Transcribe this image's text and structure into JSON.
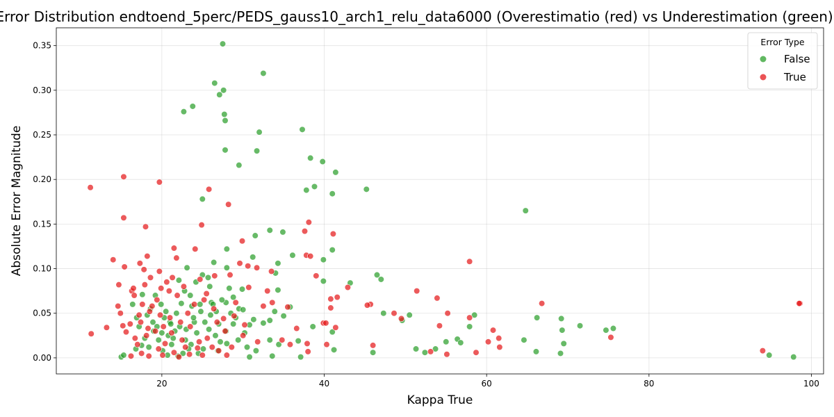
{
  "chart_data": {
    "type": "scatter",
    "title": "Error Distribution endtoend_5perc/PEDS_gauss10_arch1_relu_data6000 (Overestimatio (red) vs Underestimation (green))",
    "xlabel": "Kappa True",
    "ylabel": "Absolute Error Magnitude",
    "xlim": [
      7,
      101.5
    ],
    "ylim": [
      -0.018,
      0.37
    ],
    "xticks": [
      "20",
      "40",
      "60",
      "80",
      "100"
    ],
    "yticks": [
      "0.00",
      "0.05",
      "0.10",
      "0.15",
      "0.20",
      "0.25",
      "0.30",
      "0.35"
    ],
    "grid": true,
    "legend": {
      "title": "Error Type",
      "position": "top-right"
    },
    "series": [
      {
        "name": "False",
        "color": "#2ca02c",
        "points": [
          [
            27.5,
            0.352
          ],
          [
            32.5,
            0.319
          ],
          [
            26.5,
            0.308
          ],
          [
            27.6,
            0.3
          ],
          [
            27.1,
            0.295
          ],
          [
            23.8,
            0.282
          ],
          [
            22.7,
            0.276
          ],
          [
            27.7,
            0.273
          ],
          [
            27.8,
            0.266
          ],
          [
            37.3,
            0.256
          ],
          [
            32.0,
            0.253
          ],
          [
            27.8,
            0.233
          ],
          [
            31.7,
            0.232
          ],
          [
            38.3,
            0.224
          ],
          [
            39.8,
            0.22
          ],
          [
            29.5,
            0.216
          ],
          [
            41.4,
            0.208
          ],
          [
            38.8,
            0.192
          ],
          [
            45.2,
            0.189
          ],
          [
            37.8,
            0.188
          ],
          [
            41.0,
            0.184
          ],
          [
            25.0,
            0.178
          ],
          [
            64.8,
            0.165
          ],
          [
            33.3,
            0.143
          ],
          [
            34.9,
            0.141
          ],
          [
            31.5,
            0.137
          ],
          [
            28.0,
            0.122
          ],
          [
            41.0,
            0.121
          ],
          [
            36.1,
            0.115
          ],
          [
            31.2,
            0.113
          ],
          [
            39.9,
            0.11
          ],
          [
            26.4,
            0.107
          ],
          [
            34.3,
            0.106
          ],
          [
            28.0,
            0.101
          ],
          [
            23.1,
            0.101
          ],
          [
            34.0,
            0.095
          ],
          [
            46.5,
            0.093
          ],
          [
            25.0,
            0.093
          ],
          [
            25.7,
            0.09
          ],
          [
            47.0,
            0.088
          ],
          [
            39.9,
            0.086
          ],
          [
            43.2,
            0.084
          ],
          [
            22.1,
            0.087
          ],
          [
            28.3,
            0.078
          ],
          [
            29.9,
            0.077
          ],
          [
            34.3,
            0.076
          ],
          [
            17.6,
            0.071
          ],
          [
            19.2,
            0.07
          ],
          [
            23.5,
            0.07
          ],
          [
            28.8,
            0.068
          ],
          [
            27.9,
            0.062
          ],
          [
            26.1,
            0.062
          ],
          [
            22.4,
            0.061
          ],
          [
            24.7,
            0.06
          ],
          [
            26.3,
            0.06
          ],
          [
            35.8,
            0.057
          ],
          [
            29.5,
            0.055
          ],
          [
            30.0,
            0.054
          ],
          [
            20.5,
            0.052
          ],
          [
            26.7,
            0.052
          ],
          [
            33.9,
            0.052
          ],
          [
            47.3,
            0.05
          ],
          [
            58.5,
            0.048
          ],
          [
            50.5,
            0.048
          ],
          [
            66.2,
            0.045
          ],
          [
            69.2,
            0.044
          ],
          [
            35.0,
            0.047
          ],
          [
            29.1,
            0.045
          ],
          [
            31.3,
            0.043
          ],
          [
            33.3,
            0.042
          ],
          [
            49.6,
            0.042
          ],
          [
            18.9,
            0.04
          ],
          [
            21.0,
            0.04
          ],
          [
            24.0,
            0.04
          ],
          [
            27.0,
            0.038
          ],
          [
            28.8,
            0.038
          ],
          [
            30.8,
            0.037
          ],
          [
            32.5,
            0.039
          ],
          [
            71.5,
            0.036
          ],
          [
            38.6,
            0.035
          ],
          [
            57.9,
            0.035
          ],
          [
            75.6,
            0.033
          ],
          [
            74.7,
            0.031
          ],
          [
            69.3,
            0.031
          ],
          [
            41.0,
            0.029
          ],
          [
            30.2,
            0.028
          ],
          [
            56.4,
            0.021
          ],
          [
            36.8,
            0.019
          ],
          [
            55.0,
            0.018
          ],
          [
            69.5,
            0.016
          ],
          [
            56.8,
            0.017
          ],
          [
            64.6,
            0.02
          ],
          [
            33.3,
            0.02
          ],
          [
            28.0,
            0.016
          ],
          [
            34.4,
            0.015
          ],
          [
            53.7,
            0.01
          ],
          [
            51.3,
            0.01
          ],
          [
            41.2,
            0.009
          ],
          [
            31.6,
            0.008
          ],
          [
            46.0,
            0.006
          ],
          [
            52.4,
            0.006
          ],
          [
            66.1,
            0.007
          ],
          [
            69.1,
            0.005
          ],
          [
            94.8,
            0.003
          ],
          [
            97.8,
            0.001
          ],
          [
            37.1,
            0.001
          ],
          [
            33.6,
            0.002
          ],
          [
            30.8,
            0.001
          ],
          [
            15.0,
            0.001
          ],
          [
            15.3,
            0.003
          ],
          [
            16.8,
            0.01
          ],
          [
            17.5,
            0.014
          ],
          [
            18.4,
            0.012
          ],
          [
            19.6,
            0.02
          ],
          [
            20.8,
            0.025
          ],
          [
            21.6,
            0.03
          ],
          [
            22.2,
            0.035
          ],
          [
            22.9,
            0.02
          ],
          [
            23.6,
            0.015
          ],
          [
            24.3,
            0.028
          ],
          [
            25.1,
            0.01
          ],
          [
            25.8,
            0.032
          ],
          [
            26.6,
            0.025
          ],
          [
            27.2,
            0.018
          ],
          [
            27.9,
            0.03
          ],
          [
            19.0,
            0.03
          ],
          [
            20.1,
            0.008
          ],
          [
            21.2,
            0.015
          ],
          [
            22.6,
            0.005
          ],
          [
            23.9,
            0.045
          ],
          [
            24.5,
            0.005
          ],
          [
            26.0,
            0.048
          ],
          [
            21.8,
            0.05
          ],
          [
            20.3,
            0.045
          ],
          [
            18.6,
            0.055
          ],
          [
            16.9,
            0.045
          ],
          [
            17.9,
            0.022
          ],
          [
            19.4,
            0.035
          ],
          [
            20.7,
            0.003
          ],
          [
            22.0,
            0.002
          ],
          [
            23.3,
            0.01
          ],
          [
            24.8,
            0.052
          ],
          [
            26.9,
            0.008
          ],
          [
            29.4,
            0.02
          ],
          [
            30.5,
            0.012
          ],
          [
            28.5,
            0.05
          ],
          [
            27.4,
            0.065
          ],
          [
            25.3,
            0.04
          ],
          [
            23.0,
            0.032
          ],
          [
            21.4,
            0.022
          ],
          [
            18.2,
            0.048
          ],
          [
            16.4,
            0.06
          ],
          [
            17.2,
            0.035
          ],
          [
            19.9,
            0.06
          ],
          [
            22.8,
            0.075
          ],
          [
            24.2,
            0.085
          ],
          [
            25.9,
            0.08
          ],
          [
            21.1,
            0.038
          ],
          [
            20.0,
            0.028
          ],
          [
            23.7,
            0.058
          ]
        ]
      },
      {
        "name": "True",
        "color": "#e41a1c",
        "points": [
          [
            11.2,
            0.191
          ],
          [
            15.3,
            0.203
          ],
          [
            19.7,
            0.197
          ],
          [
            25.8,
            0.189
          ],
          [
            28.2,
            0.172
          ],
          [
            15.3,
            0.157
          ],
          [
            24.9,
            0.149
          ],
          [
            38.1,
            0.152
          ],
          [
            18.0,
            0.147
          ],
          [
            37.6,
            0.142
          ],
          [
            41.1,
            0.139
          ],
          [
            29.9,
            0.131
          ],
          [
            21.5,
            0.123
          ],
          [
            24.1,
            0.122
          ],
          [
            21.8,
            0.112
          ],
          [
            37.8,
            0.115
          ],
          [
            38.3,
            0.114
          ],
          [
            18.2,
            0.114
          ],
          [
            14.0,
            0.11
          ],
          [
            57.9,
            0.108
          ],
          [
            29.6,
            0.106
          ],
          [
            17.3,
            0.106
          ],
          [
            30.6,
            0.103
          ],
          [
            15.4,
            0.102
          ],
          [
            31.7,
            0.101
          ],
          [
            17.8,
            0.099
          ],
          [
            19.7,
            0.097
          ],
          [
            33.5,
            0.097
          ],
          [
            39.0,
            0.092
          ],
          [
            21.3,
            0.09
          ],
          [
            28.4,
            0.093
          ],
          [
            18.6,
            0.09
          ],
          [
            42.9,
            0.079
          ],
          [
            30.7,
            0.079
          ],
          [
            51.4,
            0.075
          ],
          [
            33.0,
            0.075
          ],
          [
            16.3,
            0.075
          ],
          [
            14.7,
            0.082
          ],
          [
            16.5,
            0.078
          ],
          [
            17.9,
            0.082
          ],
          [
            20.9,
            0.075
          ],
          [
            25.5,
            0.072
          ],
          [
            41.6,
            0.068
          ],
          [
            53.9,
            0.067
          ],
          [
            40.8,
            0.066
          ],
          [
            66.8,
            0.061
          ],
          [
            98.6,
            0.061
          ],
          [
            98.5,
            0.061
          ],
          [
            45.7,
            0.06
          ],
          [
            45.3,
            0.059
          ],
          [
            33.6,
            0.062
          ],
          [
            35.5,
            0.057
          ],
          [
            32.5,
            0.058
          ],
          [
            40.8,
            0.056
          ],
          [
            48.6,
            0.05
          ],
          [
            55.2,
            0.05
          ],
          [
            49.5,
            0.044
          ],
          [
            57.9,
            0.045
          ],
          [
            60.8,
            0.031
          ],
          [
            39.9,
            0.039
          ],
          [
            40.2,
            0.039
          ],
          [
            54.2,
            0.036
          ],
          [
            41.4,
            0.034
          ],
          [
            36.6,
            0.033
          ],
          [
            61.5,
            0.022
          ],
          [
            75.3,
            0.023
          ],
          [
            60.2,
            0.018
          ],
          [
            61.6,
            0.012
          ],
          [
            94.0,
            0.008
          ],
          [
            58.7,
            0.006
          ],
          [
            55.1,
            0.004
          ],
          [
            53.1,
            0.007
          ],
          [
            46.0,
            0.014
          ],
          [
            40.3,
            0.015
          ],
          [
            35.8,
            0.015
          ],
          [
            37.9,
            0.016
          ],
          [
            38.0,
            0.007
          ],
          [
            34.8,
            0.02
          ],
          [
            31.8,
            0.018
          ],
          [
            30.0,
            0.025
          ],
          [
            27.8,
            0.03
          ],
          [
            26.2,
            0.012
          ],
          [
            24.6,
            0.018
          ],
          [
            23.5,
            0.035
          ],
          [
            22.3,
            0.04
          ],
          [
            21.0,
            0.045
          ],
          [
            19.8,
            0.048
          ],
          [
            18.5,
            0.052
          ],
          [
            17.4,
            0.04
          ],
          [
            16.1,
            0.038
          ],
          [
            15.2,
            0.036
          ],
          [
            14.6,
            0.058
          ],
          [
            13.2,
            0.034
          ],
          [
            11.3,
            0.027
          ],
          [
            14.9,
            0.05
          ],
          [
            15.6,
            0.029
          ],
          [
            16.7,
            0.022
          ],
          [
            17.5,
            0.005
          ],
          [
            18.4,
            0.002
          ],
          [
            19.6,
            0.01
          ],
          [
            20.4,
            0.016
          ],
          [
            21.5,
            0.006
          ],
          [
            22.1,
            0.001
          ],
          [
            23.4,
            0.004
          ],
          [
            24.4,
            0.011
          ],
          [
            25.6,
            0.022
          ],
          [
            26.8,
            0.04
          ],
          [
            27.6,
            0.044
          ],
          [
            28.9,
            0.047
          ],
          [
            30.2,
            0.037
          ],
          [
            16.2,
            0.002
          ],
          [
            17.0,
            0.015
          ],
          [
            18.1,
            0.025
          ],
          [
            19.2,
            0.03
          ],
          [
            20.2,
            0.035
          ],
          [
            21.2,
            0.028
          ],
          [
            22.5,
            0.02
          ],
          [
            23.2,
            0.05
          ],
          [
            24.0,
            0.06
          ],
          [
            25.2,
            0.065
          ],
          [
            26.4,
            0.055
          ],
          [
            27.0,
            0.008
          ],
          [
            28.0,
            0.003
          ],
          [
            29.1,
            0.062
          ],
          [
            19.4,
            0.065
          ],
          [
            18.8,
            0.058
          ],
          [
            17.6,
            0.06
          ],
          [
            16.6,
            0.07
          ],
          [
            20.6,
            0.085
          ],
          [
            22.7,
            0.08
          ],
          [
            24.7,
            0.088
          ],
          [
            26.5,
            0.092
          ],
          [
            21.9,
            0.07
          ],
          [
            19.9,
            0.078
          ],
          [
            18.3,
            0.033
          ],
          [
            20.1,
            0.003
          ],
          [
            22.9,
            0.012
          ],
          [
            25.0,
            0.003
          ],
          [
            17.2,
            0.048
          ],
          [
            28.6,
            0.012
          ]
        ]
      }
    ]
  }
}
